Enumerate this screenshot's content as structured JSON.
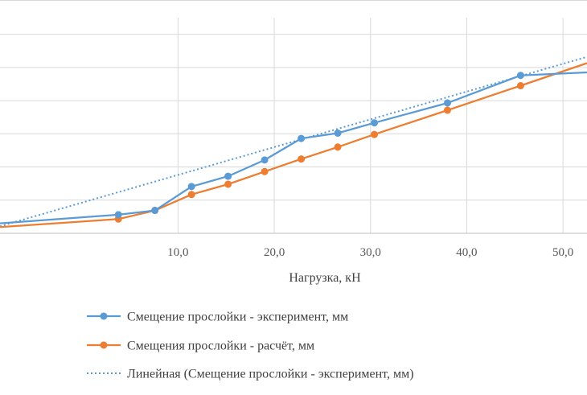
{
  "chart_data": {
    "type": "line",
    "xlabel": "Нагрузка, кН",
    "ylabel": "",
    "xlim": [
      -8.5,
      52.5
    ],
    "ylim": [
      0,
      6.5
    ],
    "x_ticks": [
      10,
      20,
      30,
      40,
      50
    ],
    "x_tick_labels": [
      "10,0",
      "20,0",
      "30,0",
      "40,0",
      "50,0"
    ],
    "y_gridlines": [
      1,
      2,
      3,
      4,
      5,
      6
    ],
    "grid": true,
    "legend_position": "bottom",
    "series": [
      {
        "name": "Смещение прослойки - эксперимент, мм",
        "color": "#5B9BD5",
        "style": "solid-markers",
        "x": [
          -8.5,
          3.8,
          7.6,
          11.4,
          15.2,
          19.0,
          22.8,
          26.6,
          30.4,
          38.0,
          45.6,
          52.5
        ],
        "y": [
          0.3,
          0.56,
          0.69,
          1.41,
          1.72,
          2.21,
          2.86,
          3.02,
          3.33,
          3.93,
          4.76,
          4.85
        ],
        "markers": [
          false,
          true,
          true,
          true,
          true,
          true,
          true,
          true,
          true,
          true,
          true,
          false
        ]
      },
      {
        "name": "Смещения прослойки - расчёт, мм",
        "color": "#ED7D31",
        "style": "solid-markers",
        "x": [
          -8.5,
          3.8,
          7.6,
          11.4,
          15.2,
          19.0,
          22.8,
          26.6,
          30.4,
          38.0,
          45.6,
          52.5
        ],
        "y": [
          0.19,
          0.43,
          0.69,
          1.17,
          1.48,
          1.86,
          2.24,
          2.6,
          2.98,
          3.71,
          4.45,
          5.13
        ],
        "markers": [
          false,
          true,
          true,
          true,
          true,
          true,
          true,
          true,
          true,
          true,
          true,
          false
        ]
      },
      {
        "name": "Линейная (Смещение прослойки - эксперимент, мм)",
        "color": "#5B9BD5",
        "style": "dotted",
        "x": [
          -8.5,
          52.5
        ],
        "y": [
          0.21,
          5.32
        ]
      }
    ]
  }
}
